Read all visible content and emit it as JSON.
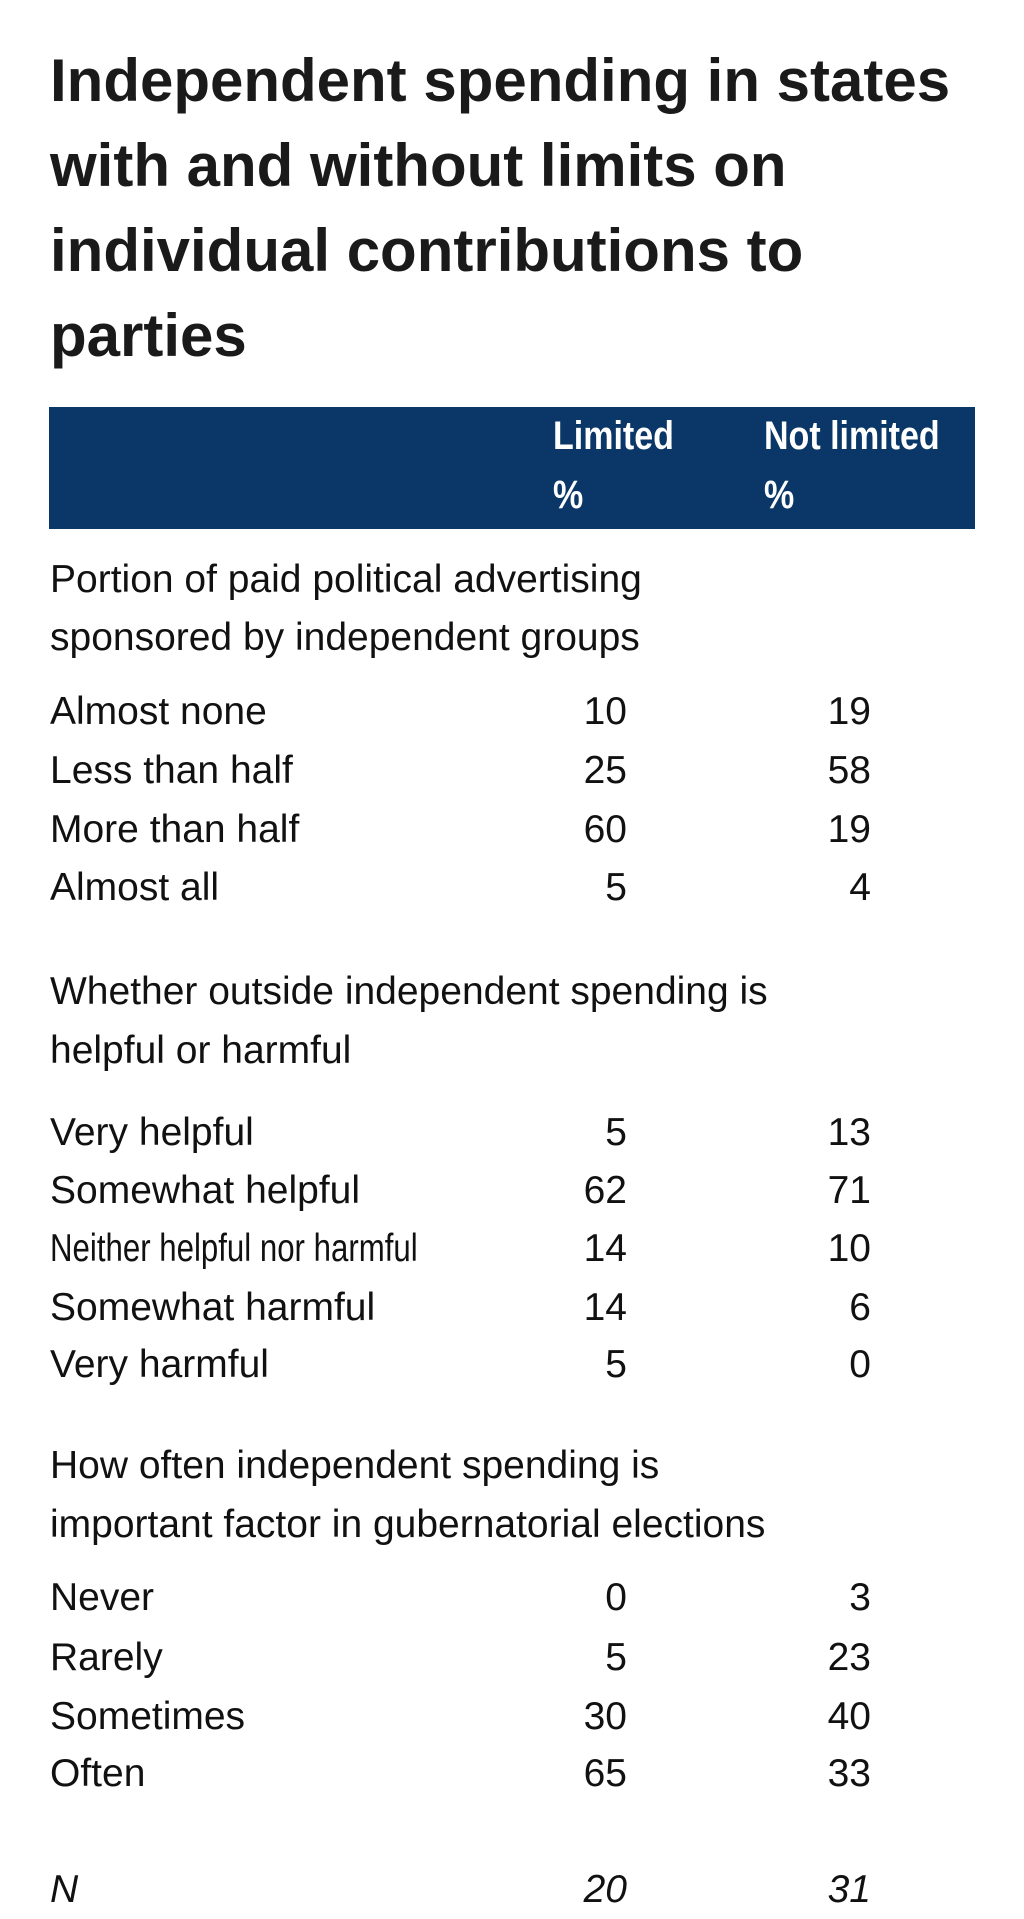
{
  "title": "Independent spending in states with and without limits on individual contributions to parties",
  "header": {
    "col1": "Limited",
    "col1_unit": "%",
    "col2": "Not limited",
    "col2_unit": "%",
    "bg_color": "#0a3767"
  },
  "sections": [
    {
      "heading_line1": "Portion of paid political advertising",
      "heading_line2": "sponsored by independent groups",
      "rows": [
        {
          "label": "Almost none",
          "limited": "10",
          "not_limited": "19"
        },
        {
          "label": "Less than half",
          "limited": "25",
          "not_limited": "58"
        },
        {
          "label": "More than half",
          "limited": "60",
          "not_limited": "19"
        },
        {
          "label": "Almost all",
          "limited": "5",
          "not_limited": "4"
        }
      ]
    },
    {
      "heading_line1": "Whether outside independent spending is",
      "heading_line2": "helpful or harmful",
      "rows": [
        {
          "label": "Very helpful",
          "limited": "5",
          "not_limited": "13"
        },
        {
          "label": "Somewhat helpful",
          "limited": "62",
          "not_limited": "71"
        },
        {
          "label": "Neither helpful nor harmful",
          "limited": "14",
          "not_limited": "10"
        },
        {
          "label": "Somewhat harmful",
          "limited": "14",
          "not_limited": "6"
        },
        {
          "label": "Very harmful",
          "limited": "5",
          "not_limited": "0"
        }
      ]
    },
    {
      "heading_line1": "How often independent spending is",
      "heading_line2": "important factor in gubernatorial elections",
      "rows": [
        {
          "label": "Never",
          "limited": "0",
          "not_limited": "3"
        },
        {
          "label": "Rarely",
          "limited": "5",
          "not_limited": "23"
        },
        {
          "label": "Sometimes",
          "limited": "30",
          "not_limited": "40"
        },
        {
          "label": "Often",
          "limited": "65",
          "not_limited": "33"
        }
      ]
    }
  ],
  "n_row": {
    "label": "N",
    "limited": "20",
    "not_limited": "31"
  }
}
